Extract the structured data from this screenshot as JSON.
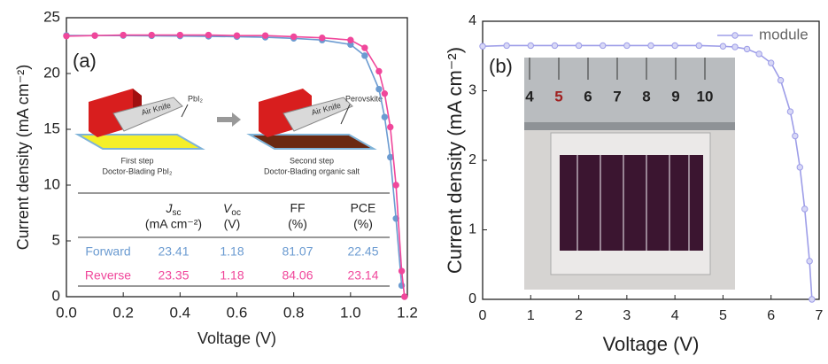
{
  "chart_data": [
    {
      "type": "line",
      "panel_label": "(a)",
      "xlabel": "Voltage (V)",
      "ylabel": "Current density (mA cm⁻²)",
      "x": [
        0,
        0.1,
        0.2,
        0.3,
        0.4,
        0.5,
        0.6,
        0.7,
        0.8,
        0.9,
        1.0,
        1.05,
        1.1,
        1.12,
        1.14,
        1.16,
        1.18,
        1.19
      ],
      "series": [
        {
          "name": "Forward",
          "color": "#6b9bd1",
          "values": [
            23.41,
            23.4,
            23.4,
            23.38,
            23.36,
            23.33,
            23.3,
            23.25,
            23.15,
            23.0,
            22.6,
            21.6,
            18.6,
            16.1,
            12.5,
            7.0,
            1.0,
            null
          ]
        },
        {
          "name": "Reverse",
          "color": "#f0479b",
          "values": [
            23.35,
            23.4,
            23.45,
            23.45,
            23.45,
            23.45,
            23.4,
            23.4,
            23.3,
            23.2,
            23.0,
            22.3,
            20.2,
            18.2,
            15.2,
            10.0,
            2.3,
            0
          ]
        }
      ],
      "xlim": [
        0,
        1.2
      ],
      "xticks": [
        {
          "value": 0,
          "label": "0.0"
        },
        0.2,
        0.4,
        0.6,
        0.8,
        {
          "value": 1,
          "label": "1.0"
        },
        1.2
      ],
      "ylim": [
        0,
        25
      ],
      "yticks": [
        0,
        5,
        10,
        15,
        20,
        25
      ]
    },
    {
      "type": "line",
      "panel_label": "(b)",
      "xlabel": "Voltage (V)",
      "ylabel": "Current density (mA cm⁻²)",
      "x": [
        0,
        0.5,
        1,
        1.5,
        2,
        2.5,
        3,
        3.5,
        4,
        4.5,
        5,
        5.25,
        5.5,
        5.75,
        6,
        6.2,
        6.4,
        6.5,
        6.6,
        6.7,
        6.8,
        6.85
      ],
      "series": [
        {
          "name": "module",
          "color": "#9d9de8",
          "values": [
            3.64,
            3.65,
            3.65,
            3.65,
            3.65,
            3.65,
            3.65,
            3.65,
            3.65,
            3.65,
            3.64,
            3.63,
            3.6,
            3.53,
            3.4,
            3.15,
            2.7,
            2.35,
            1.9,
            1.3,
            0.55,
            0
          ]
        }
      ],
      "legend": "upper right",
      "xlim": [
        0,
        7
      ],
      "xticks": [
        0,
        1,
        2,
        3,
        4,
        5,
        6,
        7
      ],
      "ylim": [
        0,
        4
      ],
      "yticks": [
        0,
        1,
        2,
        3,
        4
      ]
    }
  ],
  "inset_a": {
    "knife_label": "Air Knife",
    "material_1": "PbI₂",
    "material_2": "Perovskite",
    "step_1": "First step",
    "step_1_detail": "Doctor-Blading PbI₂",
    "step_2": "Second step",
    "step_2_detail": "Doctor-Blading organic salt"
  },
  "table": {
    "header": [
      {
        "main": "J",
        "sub": "sc",
        "unit": "(mA cm⁻²)"
      },
      {
        "main": "V",
        "sub": "oc",
        "unit": "(V)"
      },
      {
        "main": "FF",
        "unit": "(%)"
      },
      {
        "main": "PCE",
        "unit": "(%)"
      }
    ],
    "rows": [
      [
        23.41,
        1.18,
        81.07,
        22.45
      ],
      [
        23.35,
        1.18,
        84.06,
        23.14
      ]
    ]
  },
  "inset_b": {
    "ruler_labels": [
      "4",
      "5",
      "6",
      "7",
      "8",
      "9",
      "10"
    ]
  }
}
